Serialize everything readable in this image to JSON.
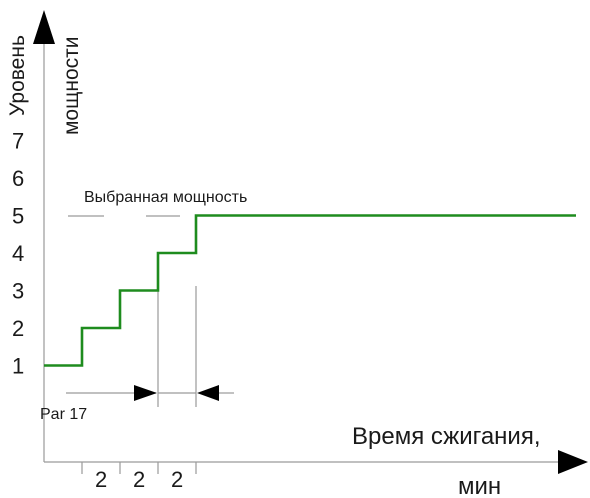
{
  "chart_data": {
    "type": "line",
    "step": true,
    "ylabel_line1": "Уровень",
    "ylabel_line2": "мощности",
    "xlabel_line1": "Время сжигания,",
    "xlabel_line2": "мин",
    "y_ticks": [
      "1",
      "2",
      "3",
      "4",
      "5",
      "6",
      "7"
    ],
    "ylim": [
      0,
      8
    ],
    "series": [
      {
        "color": "#1e8c1e",
        "x": [
          0,
          1,
          1,
          2,
          2,
          3,
          3,
          4,
          4,
          14
        ],
        "y": [
          1,
          1,
          2,
          2,
          3,
          3,
          4,
          4,
          5,
          5
        ]
      }
    ],
    "interval_labels": [
      "2",
      "2",
      "2"
    ],
    "annotations": {
      "selected_power": "Выбранная мощность",
      "parameter": "Par 17"
    },
    "grid": false
  }
}
